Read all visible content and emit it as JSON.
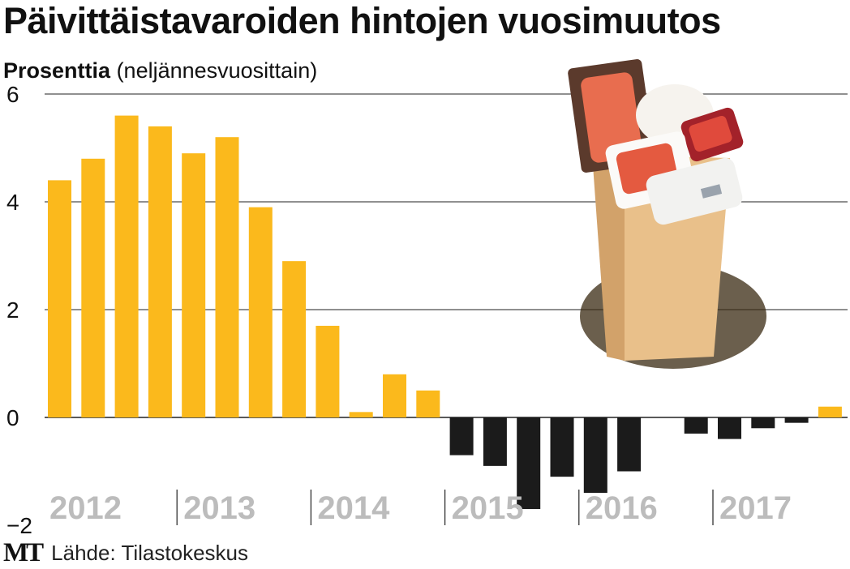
{
  "header": {
    "title": "Päivittäistavaroiden hintojen vuosimuutos",
    "unit_label": "Prosenttia",
    "unit_note": "(neljännesvuosittain)"
  },
  "footer": {
    "logo": "MT",
    "source": "Lähde: Tilastokeskus"
  },
  "colors": {
    "positive": "#fbb91c",
    "negative": "#1b1b1b",
    "year_label": "#bcbcbc",
    "grid": "#222222"
  },
  "illustration": "grocery-bag-icon",
  "chart_data": {
    "type": "bar",
    "title": "Päivittäistavaroiden hintojen vuosimuutos",
    "ylabel": "Prosenttia",
    "ylim": [
      -2,
      6
    ],
    "yticks": [
      "6",
      "4",
      "2",
      "0",
      "−2"
    ],
    "ytick_values": [
      6,
      4,
      2,
      0,
      -2
    ],
    "grid": true,
    "years": [
      "2012",
      "2013",
      "2014",
      "2015",
      "2016",
      "2017"
    ],
    "quarters_per_year": 4,
    "values": [
      4.4,
      4.8,
      5.6,
      5.4,
      4.9,
      5.2,
      3.9,
      2.9,
      1.7,
      0.1,
      0.8,
      0.5,
      -0.7,
      -0.9,
      -1.7,
      -1.1,
      -1.4,
      -1.0,
      null,
      -0.3,
      -0.4,
      -0.2,
      -0.1,
      0.2
    ]
  }
}
